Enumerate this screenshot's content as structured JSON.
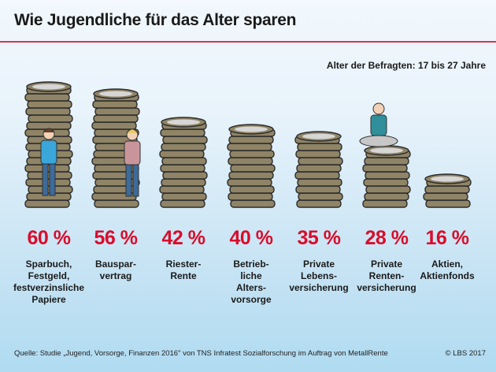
{
  "header": {
    "title": "Wie Jugendliche für das Alter sparen",
    "subtitle": "Alter der Befragten: 17 bis 27 Jahre"
  },
  "colors": {
    "accent_red": "#d90d2b",
    "rule_red": "#d0364a",
    "coin_fill": "#8f8466",
    "coin_top": "#d6d6d6",
    "coin_outline": "#2b2b2b"
  },
  "chart_data": {
    "type": "bar",
    "title": "Wie Jugendliche für das Alter sparen",
    "subtitle": "Alter der Befragten: 17 bis 27 Jahre",
    "unit": "%",
    "categories": [
      "Sparbuch,\nFestgeld,\nfestverzinsliche\nPapiere",
      "Bauspar-\nvertrag",
      "Riester-\nRente",
      "Betrieb-\nliche\nAlters-\nvorsorge",
      "Private\nLebens-\nversicherung",
      "Private\nRenten-\nversicherung",
      "Aktien,\nAktienfonds"
    ],
    "values": [
      60,
      56,
      42,
      40,
      35,
      28,
      16
    ],
    "labels": [
      "60 %",
      "56 %",
      "42 %",
      "40 %",
      "35 %",
      "28 %",
      "16 %"
    ],
    "ylim": [
      0,
      60
    ],
    "grid": false,
    "legend": "none"
  },
  "footer": {
    "source": "Quelle:  Studie „Jugend, Vorsorge, Finanzen 2016\" von TNS Infratest Sozialforschung im Auftrag von MetallRente",
    "copyright": "© LBS 2017"
  }
}
